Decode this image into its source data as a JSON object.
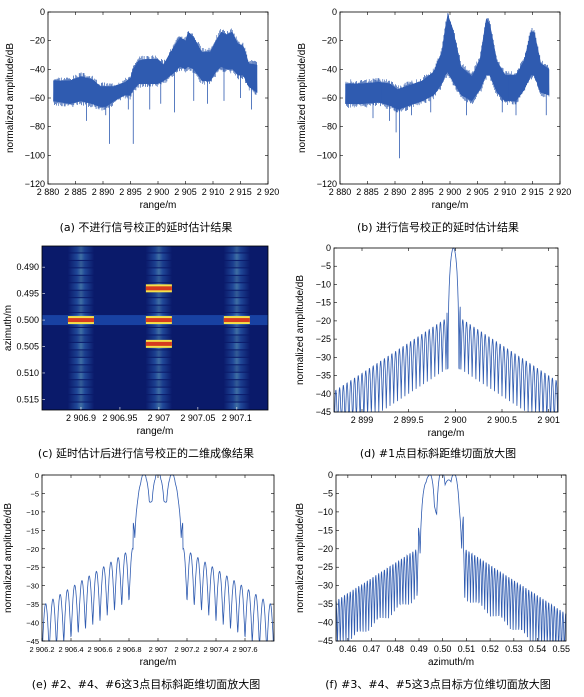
{
  "captions": {
    "a": "(a) 不进行信号校正的延时估计结果",
    "b": "(b) 进行信号校正的延时估计结果",
    "c": "(c) 延时估计后进行信号校正的二维成像结果",
    "d": "(d) #1点目标斜距维切面放大图",
    "e": "(e) #2、#4、#6这3点目标斜距维切面放大图",
    "f": "(f) #3、#4、#5这3点目标方位维切面放大图"
  },
  "colors": {
    "line": "#2f5bb0",
    "fill": "#2f5bb0"
  },
  "chart_data": [
    {
      "id": "a",
      "type": "line",
      "xlabel": "range/m",
      "ylabel": "normalized amplitude/dB",
      "xlim": [
        2880,
        2920
      ],
      "ylim": [
        -120,
        0
      ],
      "xticks": [
        2880,
        2885,
        2890,
        2895,
        2900,
        2905,
        2910,
        2915,
        2920
      ],
      "xtick_labels": [
        "2 880",
        "2 885",
        "2 890",
        "2 895",
        "2 900",
        "2 905",
        "2 910",
        "2 915",
        "2 920"
      ],
      "yticks": [
        0,
        -20,
        -40,
        -60,
        -80,
        -100,
        -120
      ],
      "ytick_labels": [
        "0",
        "−20",
        "−40",
        "−60",
        "−80",
        "−100",
        "−120"
      ],
      "envelope": {
        "x": [
          2881,
          2884,
          2886,
          2888,
          2889.5,
          2890.5,
          2892,
          2894,
          2895,
          2895.5,
          2896.5,
          2898,
          2900,
          2901,
          2902,
          2903,
          2904,
          2905,
          2905.5,
          2906.5,
          2908,
          2909.5,
          2910.5,
          2911.5,
          2912.5,
          2913.5,
          2914.5,
          2915.5,
          2916.5,
          2918
        ],
        "upper": [
          -48,
          -48,
          -45,
          -47,
          -52,
          -52,
          -52,
          -49,
          -46,
          -40,
          -34,
          -33,
          -33,
          -37,
          -30,
          -24,
          -18,
          -20,
          -14,
          -18,
          -28,
          -28,
          -20,
          -14,
          -16,
          -14,
          -22,
          -24,
          -36,
          -37
        ],
        "lower": [
          -62,
          -64,
          -62,
          -64,
          -66,
          -66,
          -62,
          -58,
          -58,
          -54,
          -50,
          -50,
          -50,
          -48,
          -45,
          -42,
          -38,
          -40,
          -38,
          -40,
          -48,
          -48,
          -42,
          -38,
          -40,
          -40,
          -44,
          -44,
          -52,
          -56
        ]
      },
      "spikes": [
        {
          "x": 2887.0,
          "y": -76
        },
        {
          "x": 2890.5,
          "y": -72
        },
        {
          "x": 2891.2,
          "y": -92
        },
        {
          "x": 2895.5,
          "y": -92
        },
        {
          "x": 2894.6,
          "y": -68
        },
        {
          "x": 2898.5,
          "y": -68
        },
        {
          "x": 2900.5,
          "y": -64
        },
        {
          "x": 2903.0,
          "y": -70
        },
        {
          "x": 2906.5,
          "y": -62
        },
        {
          "x": 2909.0,
          "y": -64
        },
        {
          "x": 2912.0,
          "y": -62
        },
        {
          "x": 2915.0,
          "y": -60
        },
        {
          "x": 2917.0,
          "y": -68
        }
      ]
    },
    {
      "id": "b",
      "type": "line",
      "xlabel": "range/m",
      "ylabel": "normalized amplitude/dB",
      "xlim": [
        2880,
        2920
      ],
      "ylim": [
        -120,
        0
      ],
      "xticks": [
        2880,
        2885,
        2890,
        2895,
        2900,
        2905,
        2910,
        2915,
        2920
      ],
      "xtick_labels": [
        "2 880",
        "2 885",
        "2 890",
        "2 895",
        "2 900",
        "2 905",
        "2 910",
        "2 915",
        "2 920"
      ],
      "yticks": [
        0,
        -20,
        -40,
        -60,
        -80,
        -100,
        -120
      ],
      "ytick_labels": [
        "0",
        "−20",
        "−40",
        "−60",
        "−80",
        "−100",
        "−120"
      ],
      "envelope": {
        "x": [
          2881,
          2884,
          2887,
          2889,
          2890.5,
          2892,
          2895,
          2897,
          2898.5,
          2899.2,
          2899.6,
          2900.5,
          2902,
          2904,
          2905.5,
          2906.6,
          2907.2,
          2908.5,
          2910,
          2912,
          2913.5,
          2914.7,
          2915.3,
          2916.5,
          2918
        ],
        "upper": [
          -50,
          -50,
          -49,
          -50,
          -54,
          -52,
          -48,
          -42,
          -28,
          -10,
          -2,
          -12,
          -38,
          -45,
          -32,
          -5,
          -8,
          -34,
          -44,
          -44,
          -34,
          -14,
          -14,
          -36,
          -40
        ],
        "lower": [
          -64,
          -64,
          -63,
          -65,
          -68,
          -66,
          -62,
          -58,
          -50,
          -44,
          -42,
          -48,
          -58,
          -62,
          -54,
          -44,
          -44,
          -56,
          -62,
          -62,
          -54,
          -44,
          -44,
          -56,
          -58
        ]
      },
      "spikes": [
        {
          "x": 2886.0,
          "y": -74
        },
        {
          "x": 2889.0,
          "y": -76
        },
        {
          "x": 2890.8,
          "y": -102
        },
        {
          "x": 2890.2,
          "y": -84
        },
        {
          "x": 2893.0,
          "y": -72
        },
        {
          "x": 2896.5,
          "y": -70
        },
        {
          "x": 2903.0,
          "y": -72
        },
        {
          "x": 2909.5,
          "y": -70
        },
        {
          "x": 2912.0,
          "y": -72
        },
        {
          "x": 2917.5,
          "y": -72
        }
      ]
    },
    {
      "id": "c",
      "type": "heatmap",
      "xlabel": "range/m",
      "ylabel": "azimuth/m",
      "xlim": [
        2906.85,
        2907.14
      ],
      "ylim": [
        0.486,
        0.517
      ],
      "xticks": [
        2906.9,
        2906.95,
        2907,
        2907.05,
        2907.1
      ],
      "xtick_labels": [
        "2 906.9",
        "2 906.95",
        "2 907",
        "2 907.05",
        "2 907.1"
      ],
      "yticks": [
        0.49,
        0.495,
        0.5,
        0.505,
        0.51,
        0.515
      ],
      "ytick_labels": [
        "0.490",
        "0.495",
        "0.500",
        "0.505",
        "0.510",
        "0.515"
      ],
      "points": [
        {
          "x": 2906.9,
          "y": 0.5
        },
        {
          "x": 2907.0,
          "y": 0.5
        },
        {
          "x": 2907.1,
          "y": 0.5
        },
        {
          "x": 2907.0,
          "y": 0.494
        },
        {
          "x": 2907.0,
          "y": 0.5045
        }
      ]
    },
    {
      "id": "d",
      "type": "line",
      "xlabel": "range/m",
      "ylabel": "normalized amplitude/dB",
      "xlim": [
        2898.7,
        2901.1
      ],
      "ylim": [
        -45,
        0
      ],
      "xticks": [
        2899,
        2899.5,
        2900,
        2900.5,
        2901
      ],
      "xtick_labels": [
        "2 899",
        "2 899.5",
        "2 900",
        "2 900.5",
        "2 901"
      ],
      "yticks": [
        0,
        -5,
        -10,
        -15,
        -20,
        -25,
        -30,
        -35,
        -40,
        -45
      ],
      "ytick_labels": [
        "0",
        "−5",
        "−10",
        "−15",
        "−20",
        "−25",
        "−30",
        "−35",
        "−40",
        "−45"
      ],
      "peaks": [
        2899.98
      ],
      "sidelobe_period": 0.04,
      "mainlobe_halfwidth": 0.06
    },
    {
      "id": "e",
      "type": "line",
      "xlabel": "range/m",
      "ylabel": "normalized amplitude/dB",
      "xlim": [
        2906.2,
        2907.8
      ],
      "ylim": [
        -45,
        0
      ],
      "xticks": [
        2906.2,
        2906.4,
        2906.6,
        2906.8,
        2907,
        2907.2,
        2907.4,
        2907.6
      ],
      "xtick_labels": [
        "2 906.2",
        "2 906.4",
        "2 906.6",
        "2 906.8",
        "2 907",
        "2 907.2",
        "2 907.4",
        "2 907.6"
      ],
      "yticks": [
        0,
        -5,
        -10,
        -15,
        -20,
        -25,
        -30,
        -35,
        -40,
        -45
      ],
      "ytick_labels": [
        "0",
        "−5",
        "−10",
        "−15",
        "−20",
        "−25",
        "−30",
        "−35",
        "−40",
        "−45"
      ],
      "peaks": [
        2906.9,
        2907.0,
        2907.1
      ],
      "sidelobe_period": 0.05,
      "mainlobe_halfwidth": 0.06
    },
    {
      "id": "f",
      "type": "line",
      "xlabel": "azimuth/m",
      "ylabel": "normalized amplitude/dB",
      "xlim": [
        0.455,
        0.552
      ],
      "ylim": [
        -45,
        0
      ],
      "xticks": [
        0.46,
        0.47,
        0.48,
        0.49,
        0.5,
        0.51,
        0.52,
        0.53,
        0.54,
        0.55
      ],
      "xtick_labels": [
        "0.46",
        "0.47",
        "0.48",
        "0.49",
        "0.50",
        "0.51",
        "0.52",
        "0.53",
        "0.54",
        "0.55"
      ],
      "yticks": [
        0,
        -5,
        -10,
        -15,
        -20,
        -25,
        -30,
        -35,
        -40,
        -45
      ],
      "ytick_labels": [
        "0",
        "−5",
        "−10",
        "−15",
        "−20",
        "−25",
        "−30",
        "−35",
        "−40",
        "−45"
      ],
      "peaks": [
        0.494,
        0.5,
        0.5045
      ],
      "sidelobe_period": 0.0012,
      "mainlobe_halfwidth": 0.0035
    }
  ]
}
